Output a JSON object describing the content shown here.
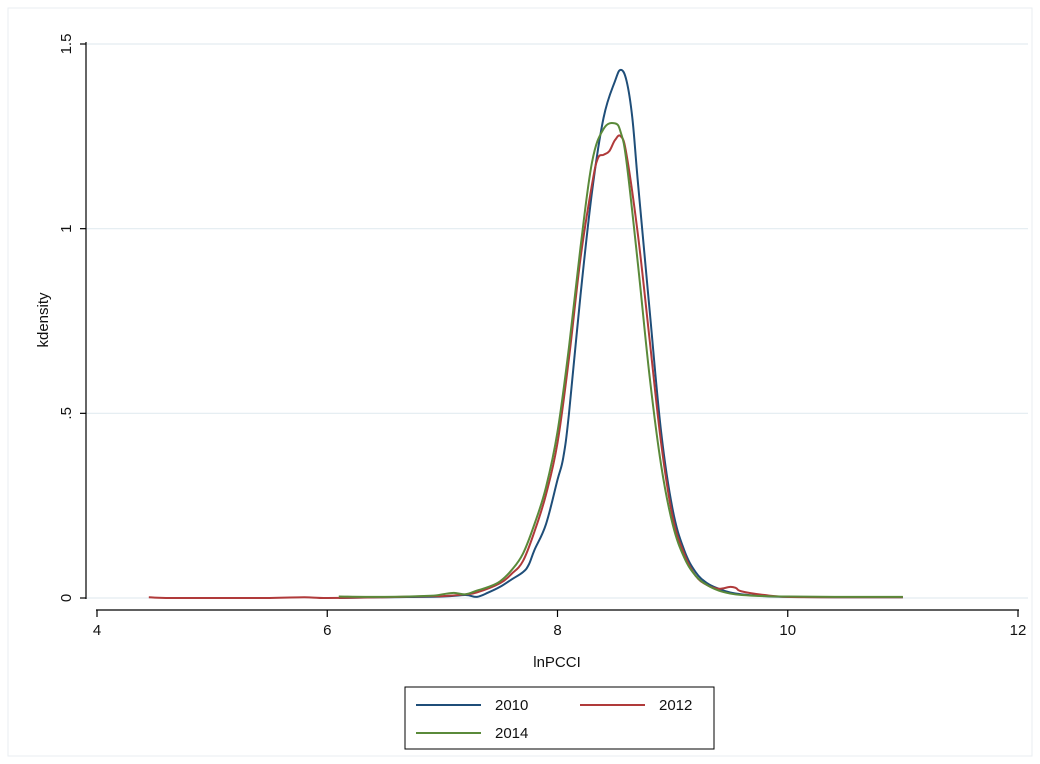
{
  "chart_data": {
    "type": "line",
    "xlabel": "lnPCCI",
    "ylabel": "kdensity",
    "xlim": [
      4,
      12
    ],
    "ylim": [
      0,
      1.5
    ],
    "xticks": [
      4,
      6,
      8,
      10,
      12
    ],
    "yticks": [
      0,
      0.5,
      1,
      1.5
    ],
    "xtick_labels": [
      "4",
      "6",
      "8",
      "10",
      "12"
    ],
    "ytick_labels": [
      "0",
      ".5",
      "1",
      "1.5"
    ],
    "grid": "horizontal",
    "legend_position": "bottom",
    "series": [
      {
        "name": "2010",
        "color": "#1f4e79",
        "points": [
          [
            6.1,
            0.0
          ],
          [
            6.5,
            0.002
          ],
          [
            7.0,
            0.004
          ],
          [
            7.2,
            0.008
          ],
          [
            7.3,
            0.003
          ],
          [
            7.4,
            0.015
          ],
          [
            7.5,
            0.03
          ],
          [
            7.6,
            0.05
          ],
          [
            7.7,
            0.07
          ],
          [
            7.75,
            0.09
          ],
          [
            7.8,
            0.13
          ],
          [
            7.9,
            0.2
          ],
          [
            8.0,
            0.32
          ],
          [
            8.05,
            0.38
          ],
          [
            8.1,
            0.5
          ],
          [
            8.2,
            0.82
          ],
          [
            8.3,
            1.1
          ],
          [
            8.4,
            1.3
          ],
          [
            8.5,
            1.4
          ],
          [
            8.55,
            1.43
          ],
          [
            8.6,
            1.4
          ],
          [
            8.65,
            1.3
          ],
          [
            8.7,
            1.12
          ],
          [
            8.8,
            0.78
          ],
          [
            8.9,
            0.45
          ],
          [
            9.0,
            0.24
          ],
          [
            9.1,
            0.13
          ],
          [
            9.2,
            0.07
          ],
          [
            9.3,
            0.04
          ],
          [
            9.4,
            0.025
          ],
          [
            9.5,
            0.015
          ],
          [
            9.6,
            0.01
          ],
          [
            9.8,
            0.005
          ],
          [
            10.0,
            0.003
          ],
          [
            10.5,
            0.002
          ],
          [
            11.0,
            0.002
          ]
        ]
      },
      {
        "name": "2012",
        "color": "#b03a3a",
        "points": [
          [
            4.45,
            0.002
          ],
          [
            4.6,
            0.0
          ],
          [
            5.0,
            0.0
          ],
          [
            5.5,
            0.0
          ],
          [
            5.8,
            0.002
          ],
          [
            6.0,
            0.0
          ],
          [
            6.5,
            0.002
          ],
          [
            6.9,
            0.005
          ],
          [
            7.0,
            0.005
          ],
          [
            7.2,
            0.01
          ],
          [
            7.3,
            0.015
          ],
          [
            7.5,
            0.04
          ],
          [
            7.6,
            0.065
          ],
          [
            7.7,
            0.1
          ],
          [
            7.8,
            0.18
          ],
          [
            7.9,
            0.28
          ],
          [
            8.0,
            0.42
          ],
          [
            8.1,
            0.65
          ],
          [
            8.2,
            0.92
          ],
          [
            8.3,
            1.12
          ],
          [
            8.35,
            1.19
          ],
          [
            8.4,
            1.2
          ],
          [
            8.45,
            1.21
          ],
          [
            8.5,
            1.24
          ],
          [
            8.55,
            1.25
          ],
          [
            8.6,
            1.2
          ],
          [
            8.7,
            0.98
          ],
          [
            8.8,
            0.7
          ],
          [
            8.9,
            0.42
          ],
          [
            9.0,
            0.22
          ],
          [
            9.1,
            0.12
          ],
          [
            9.2,
            0.06
          ],
          [
            9.3,
            0.035
          ],
          [
            9.4,
            0.025
          ],
          [
            9.5,
            0.03
          ],
          [
            9.55,
            0.027
          ],
          [
            9.6,
            0.018
          ],
          [
            9.8,
            0.008
          ],
          [
            10.0,
            0.003
          ],
          [
            10.5,
            0.002
          ],
          [
            11.0,
            0.002
          ]
        ]
      },
      {
        "name": "2014",
        "color": "#5a8a3a",
        "points": [
          [
            6.1,
            0.004
          ],
          [
            6.5,
            0.003
          ],
          [
            6.9,
            0.006
          ],
          [
            7.0,
            0.01
          ],
          [
            7.1,
            0.014
          ],
          [
            7.2,
            0.01
          ],
          [
            7.3,
            0.02
          ],
          [
            7.4,
            0.03
          ],
          [
            7.5,
            0.045
          ],
          [
            7.6,
            0.075
          ],
          [
            7.7,
            0.12
          ],
          [
            7.8,
            0.2
          ],
          [
            7.9,
            0.3
          ],
          [
            8.0,
            0.45
          ],
          [
            8.1,
            0.68
          ],
          [
            8.2,
            0.95
          ],
          [
            8.3,
            1.18
          ],
          [
            8.4,
            1.27
          ],
          [
            8.5,
            1.285
          ],
          [
            8.55,
            1.26
          ],
          [
            8.6,
            1.18
          ],
          [
            8.7,
            0.9
          ],
          [
            8.8,
            0.6
          ],
          [
            8.9,
            0.36
          ],
          [
            9.0,
            0.2
          ],
          [
            9.1,
            0.11
          ],
          [
            9.2,
            0.06
          ],
          [
            9.3,
            0.035
          ],
          [
            9.4,
            0.02
          ],
          [
            9.5,
            0.012
          ],
          [
            9.6,
            0.008
          ],
          [
            9.8,
            0.005
          ],
          [
            10.0,
            0.004
          ],
          [
            10.5,
            0.003
          ],
          [
            11.0,
            0.003
          ]
        ]
      }
    ]
  }
}
